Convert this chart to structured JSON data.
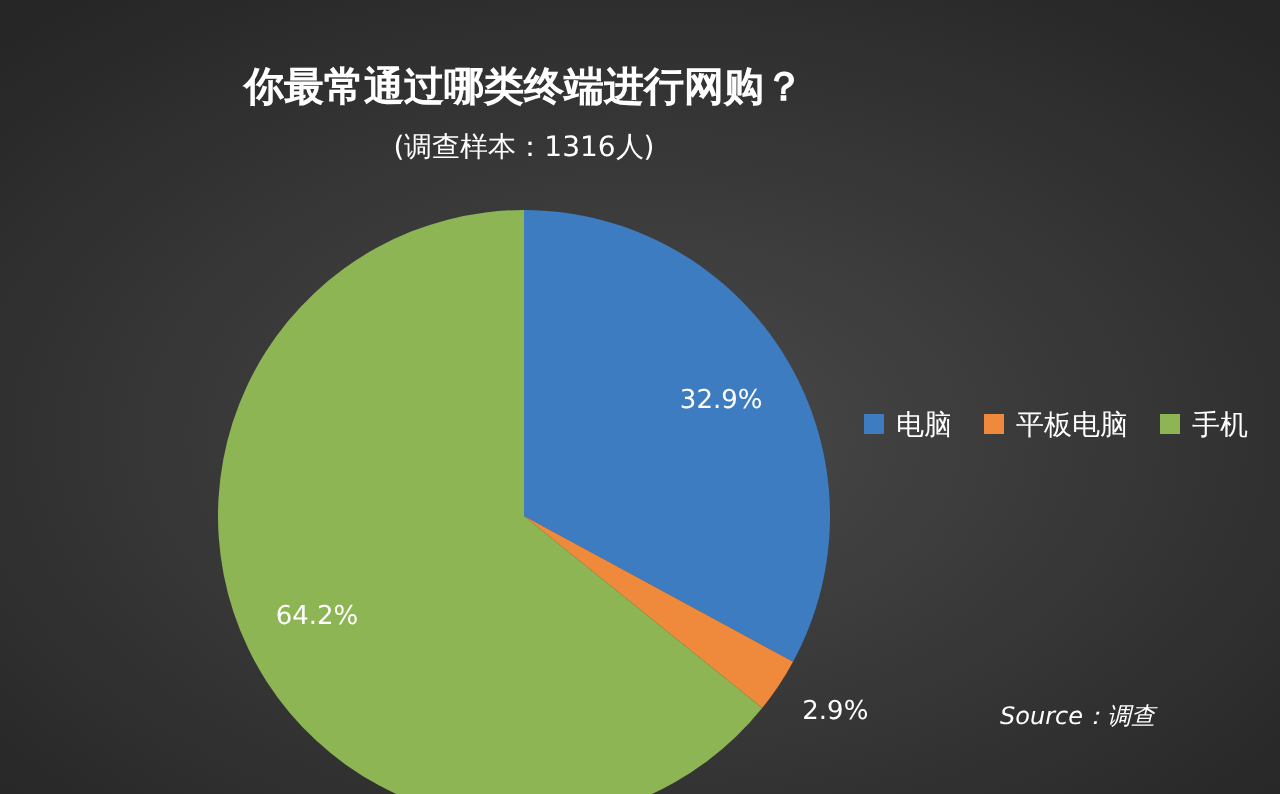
{
  "chart_data": {
    "type": "pie",
    "title": "你最常通过哪类终端进行网购？",
    "subtitle": "(调查样本：1316人)",
    "categories": [
      "电脑",
      "平板电脑",
      "手机"
    ],
    "values": [
      32.9,
      2.9,
      64.2
    ],
    "colors": [
      "#3d7cc0",
      "#ef8a3d",
      "#8db554"
    ],
    "value_labels": [
      "32.9%",
      "2.9%",
      "64.2%"
    ],
    "legend": "right",
    "annotations": [
      "Source：调查"
    ]
  }
}
